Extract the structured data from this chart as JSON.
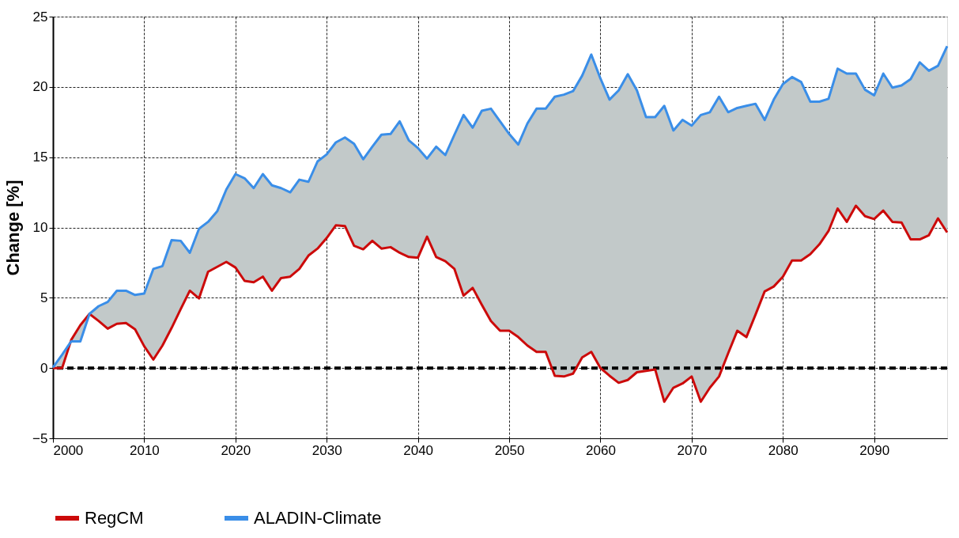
{
  "chart_data": {
    "type": "line",
    "ylabel": "Change [%]",
    "x": [
      2000,
      2001,
      2002,
      2003,
      2004,
      2005,
      2006,
      2007,
      2008,
      2009,
      2010,
      2011,
      2012,
      2013,
      2014,
      2015,
      2016,
      2017,
      2018,
      2019,
      2020,
      2021,
      2022,
      2023,
      2024,
      2025,
      2026,
      2027,
      2028,
      2029,
      2030,
      2031,
      2032,
      2033,
      2034,
      2035,
      2036,
      2037,
      2038,
      2039,
      2040,
      2041,
      2042,
      2043,
      2044,
      2045,
      2046,
      2047,
      2048,
      2049,
      2050,
      2051,
      2052,
      2053,
      2054,
      2055,
      2056,
      2057,
      2058,
      2059,
      2060,
      2061,
      2062,
      2063,
      2064,
      2065,
      2066,
      2067,
      2068,
      2069,
      2070,
      2071,
      2072,
      2073,
      2074,
      2075,
      2076,
      2077,
      2078,
      2079,
      2080,
      2081,
      2082,
      2083,
      2084,
      2085,
      2086,
      2087,
      2088,
      2089,
      2090,
      2091,
      2092,
      2093,
      2094,
      2095,
      2096,
      2097,
      2098
    ],
    "series": [
      {
        "name": "RegCM",
        "color": "#cc0a0a",
        "values": [
          0,
          0,
          2.0,
          3.05,
          3.85,
          3.35,
          2.8,
          3.15,
          3.2,
          2.75,
          1.55,
          0.6,
          1.6,
          2.85,
          4.2,
          5.5,
          4.95,
          6.85,
          7.2,
          7.55,
          7.15,
          6.2,
          6.1,
          6.5,
          5.5,
          6.4,
          6.5,
          7.05,
          8.0,
          8.5,
          9.25,
          10.15,
          10.1,
          8.7,
          8.45,
          9.05,
          8.5,
          8.6,
          8.2,
          7.9,
          7.85,
          9.35,
          7.9,
          7.6,
          7.05,
          5.15,
          5.7,
          4.5,
          3.35,
          2.65,
          2.65,
          2.2,
          1.6,
          1.15,
          1.15,
          -0.55,
          -0.6,
          -0.4,
          0.75,
          1.15,
          0,
          -0.55,
          -1.05,
          -0.85,
          -0.3,
          -0.2,
          -0.1,
          -2.4,
          -1.4,
          -1.1,
          -0.6,
          -2.4,
          -1.4,
          -0.6,
          1.05,
          2.65,
          2.2,
          3.8,
          5.45,
          5.8,
          6.5,
          7.65,
          7.65,
          8.1,
          8.8,
          9.75,
          11.35,
          10.4,
          11.55,
          10.8,
          10.6,
          11.2,
          10.4,
          10.35,
          9.15,
          9.15,
          9.45,
          10.65,
          9.65
        ]
      },
      {
        "name": "ALADIN-Climate",
        "color": "#3a8ee8",
        "values": [
          0.05,
          0.95,
          1.9,
          1.9,
          3.85,
          4.4,
          4.7,
          5.5,
          5.5,
          5.2,
          5.3,
          7.05,
          7.25,
          9.1,
          9.05,
          8.2,
          9.9,
          10.4,
          11.15,
          12.7,
          13.8,
          13.5,
          12.8,
          13.8,
          13.0,
          12.8,
          12.5,
          13.4,
          13.25,
          14.7,
          15.2,
          16.05,
          16.4,
          15.95,
          14.85,
          15.75,
          16.6,
          16.65,
          17.55,
          16.2,
          15.65,
          14.9,
          15.75,
          15.15,
          16.6,
          18.0,
          17.1,
          18.3,
          18.45,
          17.55,
          16.65,
          15.9,
          17.4,
          18.45,
          18.45,
          19.3,
          19.45,
          19.7,
          20.8,
          22.3,
          20.6,
          19.1,
          19.75,
          20.9,
          19.75,
          17.85,
          17.85,
          18.65,
          16.9,
          17.65,
          17.25,
          18.0,
          18.2,
          19.3,
          18.2,
          18.5,
          18.65,
          18.8,
          17.65,
          19.1,
          20.2,
          20.7,
          20.35,
          18.95,
          18.95,
          19.15,
          21.3,
          20.95,
          20.95,
          19.8,
          19.4,
          20.95,
          19.95,
          20.1,
          20.55,
          21.75,
          21.15,
          21.5,
          22.9
        ],
        "upper": [
          0.05,
          0.95,
          1.9,
          1.9,
          3.85,
          4.4,
          4.7,
          5.5,
          5.5,
          5.2,
          5.3,
          7.05,
          7.25,
          9.1,
          9.05,
          8.2,
          9.9,
          10.4,
          11.15,
          12.7,
          13.8,
          13.5,
          12.8,
          13.8,
          13.0,
          12.8,
          12.5,
          13.4,
          13.25,
          14.7,
          15.2,
          16.05,
          16.4,
          15.95,
          14.85,
          15.75,
          16.6,
          16.65,
          17.55,
          16.2,
          15.65,
          14.9,
          15.75,
          15.15,
          16.6,
          18.0,
          17.1,
          18.3,
          18.45,
          17.55,
          16.65,
          15.9,
          17.4,
          18.45,
          18.45,
          19.3,
          19.45,
          19.7,
          20.8,
          22.3,
          20.6,
          19.1,
          19.75,
          20.9,
          19.75,
          17.85,
          17.85,
          18.65,
          16.9,
          17.65,
          17.25,
          18.0,
          18.2,
          19.3,
          18.2,
          18.5,
          18.65,
          18.8,
          17.65,
          19.1,
          20.2,
          20.7,
          20.35,
          18.95,
          18.95,
          19.15,
          21.3,
          20.95,
          20.95,
          19.8,
          19.4,
          20.95,
          19.95,
          20.1,
          20.55,
          21.75,
          21.15,
          21.5,
          22.9
        ],
        "lower": [
          0,
          0,
          2.0,
          3.05,
          3.85,
          3.35,
          2.8,
          3.15,
          3.2,
          2.75,
          1.55,
          0.6,
          1.6,
          2.85,
          4.2,
          5.5,
          4.95,
          6.85,
          7.2,
          7.55,
          7.15,
          6.2,
          6.1,
          6.5,
          5.5,
          6.4,
          6.5,
          7.05,
          8.0,
          8.5,
          9.25,
          10.15,
          10.1,
          8.7,
          8.45,
          9.05,
          8.5,
          8.6,
          8.2,
          7.9,
          7.85,
          9.35,
          7.9,
          7.6,
          7.05,
          5.15,
          5.7,
          4.5,
          3.35,
          2.65,
          2.65,
          2.2,
          1.6,
          1.15,
          1.15,
          -0.55,
          -0.6,
          -0.4,
          0.75,
          1.15,
          0,
          -0.55,
          -1.05,
          -0.85,
          -0.3,
          -0.2,
          -0.1,
          -2.4,
          -1.4,
          -1.1,
          -0.6,
          -2.4,
          -1.4,
          -0.6,
          1.05,
          2.65,
          2.2,
          3.8,
          5.45,
          5.8,
          6.5,
          7.65,
          7.65,
          8.1,
          8.8,
          9.75,
          11.35,
          10.4,
          11.55,
          10.8,
          10.6,
          11.2,
          10.4,
          10.35,
          9.15,
          9.15,
          9.45,
          10.65,
          9.65
        ]
      }
    ],
    "xlim": [
      2000,
      2098
    ],
    "xticks": [
      2000,
      2010,
      2020,
      2030,
      2040,
      2050,
      2060,
      2070,
      2080,
      2090
    ],
    "ylim": [
      -5,
      25
    ],
    "yticks": [
      -5,
      0,
      5,
      10,
      15,
      20,
      25
    ],
    "ref_lines": [
      {
        "axis": "y",
        "value": 0,
        "color": "#000000",
        "line_style": "dashed"
      }
    ],
    "grid": true,
    "legend": "bottom",
    "marker": "none",
    "line_style": "solid"
  }
}
